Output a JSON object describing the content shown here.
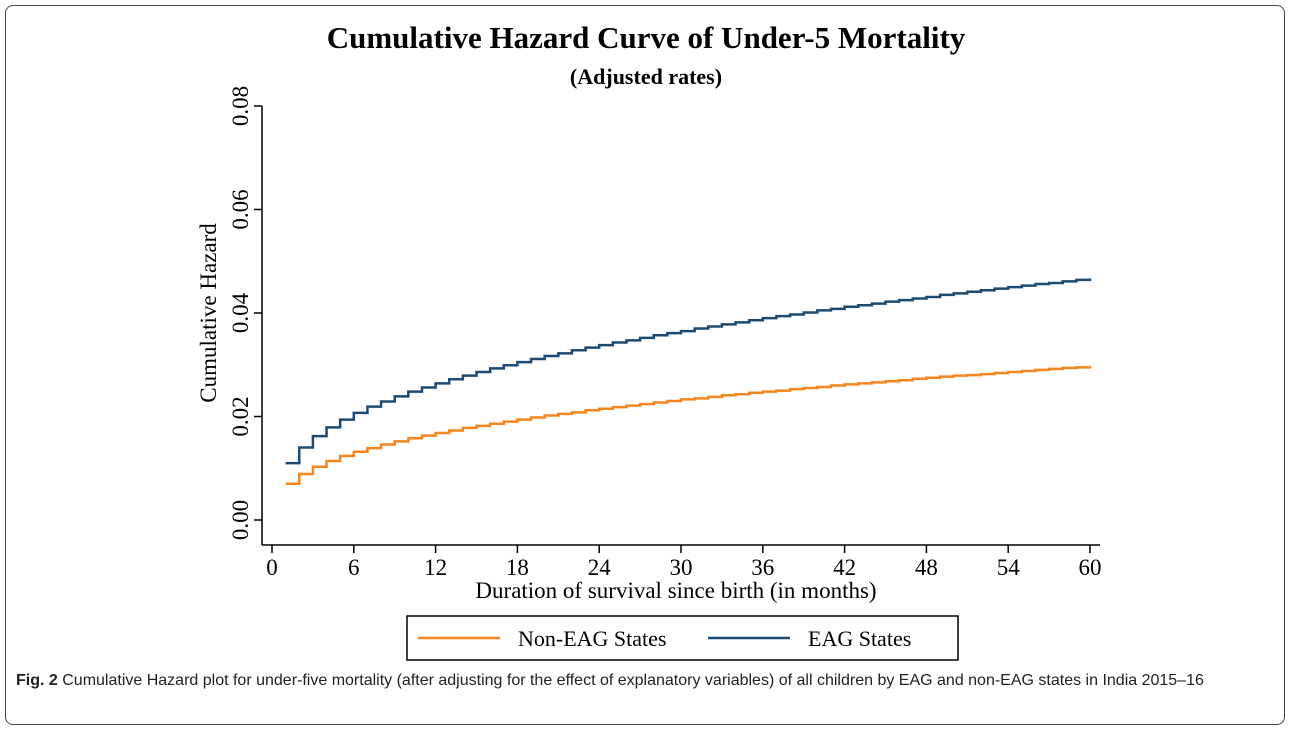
{
  "chart_data": {
    "type": "step-line",
    "title": "Cumulative Hazard Curve of Under-5 Mortality",
    "subtitle": "(Adjusted rates)",
    "x_label": "Duration of survival since birth (in months)",
    "y_label": "Cumulative Hazard",
    "x": [
      1,
      2,
      3,
      4,
      5,
      6,
      7,
      8,
      9,
      10,
      11,
      12,
      13,
      14,
      15,
      16,
      17,
      18,
      19,
      20,
      21,
      22,
      23,
      24,
      25,
      26,
      27,
      28,
      29,
      30,
      31,
      32,
      33,
      34,
      35,
      36,
      37,
      38,
      39,
      40,
      41,
      42,
      43,
      44,
      45,
      46,
      47,
      48,
      49,
      50,
      51,
      52,
      53,
      54,
      55,
      56,
      57,
      58,
      59,
      60
    ],
    "series": [
      {
        "name": "Non-EAG States",
        "color": "#f5861f",
        "values": [
          0.007,
          0.0089,
          0.0103,
          0.0114,
          0.0124,
          0.0132,
          0.0139,
          0.0146,
          0.0152,
          0.0158,
          0.0163,
          0.0168,
          0.0173,
          0.0178,
          0.0182,
          0.0186,
          0.019,
          0.0194,
          0.0198,
          0.0202,
          0.0205,
          0.0208,
          0.0212,
          0.0215,
          0.0218,
          0.0221,
          0.0224,
          0.0227,
          0.023,
          0.0233,
          0.0235,
          0.0238,
          0.0241,
          0.0243,
          0.0246,
          0.0248,
          0.025,
          0.0253,
          0.0255,
          0.0257,
          0.026,
          0.0262,
          0.0264,
          0.0266,
          0.0268,
          0.027,
          0.0273,
          0.0275,
          0.0277,
          0.0279,
          0.028,
          0.0282,
          0.0284,
          0.0286,
          0.0288,
          0.029,
          0.0292,
          0.0294,
          0.0295,
          0.0297
        ]
      },
      {
        "name": "EAG States",
        "color": "#1b4a72",
        "values": [
          0.011,
          0.014,
          0.0162,
          0.0179,
          0.0194,
          0.0207,
          0.0219,
          0.0229,
          0.0239,
          0.0248,
          0.0256,
          0.0264,
          0.0272,
          0.0279,
          0.0286,
          0.0293,
          0.0299,
          0.0305,
          0.0311,
          0.0317,
          0.0322,
          0.0328,
          0.0333,
          0.0338,
          0.0343,
          0.0347,
          0.0352,
          0.0357,
          0.0361,
          0.0365,
          0.037,
          0.0374,
          0.0378,
          0.0382,
          0.0386,
          0.039,
          0.0394,
          0.0397,
          0.0401,
          0.0405,
          0.0408,
          0.0412,
          0.0415,
          0.0418,
          0.0422,
          0.0425,
          0.0428,
          0.0431,
          0.0435,
          0.0438,
          0.0441,
          0.0444,
          0.0447,
          0.045,
          0.0453,
          0.0456,
          0.0458,
          0.0461,
          0.0464,
          0.0467
        ]
      }
    ],
    "xlim": [
      0,
      60
    ],
    "xticks": [
      0,
      6,
      12,
      18,
      24,
      30,
      36,
      42,
      48,
      54,
      60
    ],
    "ylim": [
      0,
      0.08
    ],
    "yticks": [
      {
        "value": 0,
        "label": "0.00"
      },
      {
        "value": 0.02,
        "label": "0.02"
      },
      {
        "value": 0.04,
        "label": "0.04"
      },
      {
        "value": 0.06,
        "label": "0.06"
      },
      {
        "value": 0.08,
        "label": "0.08"
      }
    ],
    "grid": false,
    "legend": "bottom"
  },
  "caption": {
    "label": "Fig. 2",
    "text": "Cumulative Hazard plot for under-five mortality (after adjusting for the effect of explanatory variables) of all children by EAG and non-EAG states in India 2015–16"
  }
}
